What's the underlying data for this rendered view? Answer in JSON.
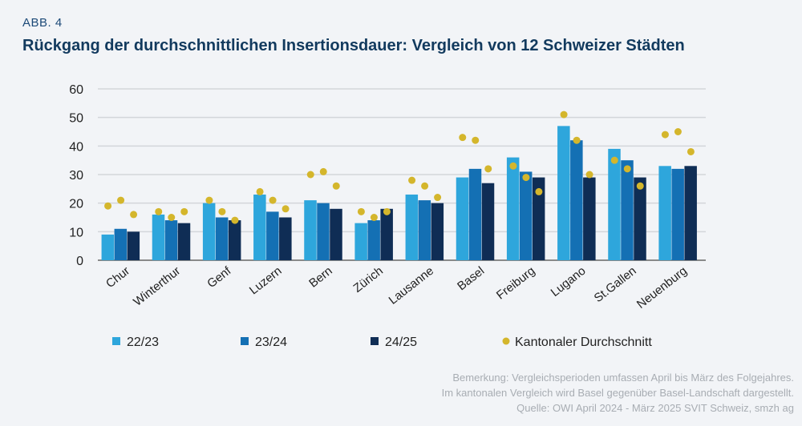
{
  "header": {
    "label": "ABB. 4",
    "title": "Rückgang der durchschnittlichen Insertionsdauer: Vergleich von 12 Schweizer Städten"
  },
  "notes": [
    "Bemerkung: Vergleichsperioden umfassen April bis März des Folgejahres.",
    "Im kantonalen Vergleich wird Basel gegenüber Basel-Landschaft dargestellt.",
    "Quelle: OWI April 2024 - März 2025 SVIT Schweiz, smzh ag"
  ],
  "chart_data": {
    "type": "bar",
    "title": "Rückgang der durchschnittlichen Insertionsdauer: Vergleich von 12 Schweizer Städten",
    "categories": [
      "Chur",
      "Winterthur",
      "Genf",
      "Luzern",
      "Bern",
      "Zürich",
      "Lausanne",
      "Basel",
      "Freiburg",
      "Lugano",
      "St.Gallen",
      "Neuenburg"
    ],
    "series": [
      {
        "name": "22/23",
        "color": "#2ea6dc",
        "values": [
          9,
          16,
          20,
          23,
          21,
          13,
          23,
          29,
          36,
          47,
          39,
          33
        ]
      },
      {
        "name": "23/24",
        "color": "#1470b4",
        "values": [
          11,
          14,
          15,
          17,
          20,
          14,
          21,
          32,
          31,
          42,
          35,
          32
        ]
      },
      {
        "name": "24/25",
        "color": "#0f2d55",
        "values": [
          10,
          13,
          14,
          15,
          18,
          18,
          20,
          27,
          29,
          29,
          29,
          33
        ]
      }
    ],
    "dots": {
      "name": "Kantonaler Durchschnitt",
      "color": "#d4b62c",
      "values": [
        [
          19,
          21,
          16
        ],
        [
          17,
          15,
          17
        ],
        [
          21,
          17,
          14
        ],
        [
          24,
          21,
          18
        ],
        [
          30,
          31,
          26
        ],
        [
          17,
          15,
          17
        ],
        [
          28,
          26,
          22
        ],
        [
          43,
          42,
          32
        ],
        [
          33,
          29,
          24
        ],
        [
          51,
          42,
          30
        ],
        [
          35,
          32,
          26
        ],
        [
          44,
          45,
          38
        ]
      ]
    },
    "ylim": [
      0,
      60
    ],
    "yticks": [
      0,
      10,
      20,
      30,
      40,
      50,
      60
    ],
    "grid": true,
    "legend": "bottom"
  }
}
